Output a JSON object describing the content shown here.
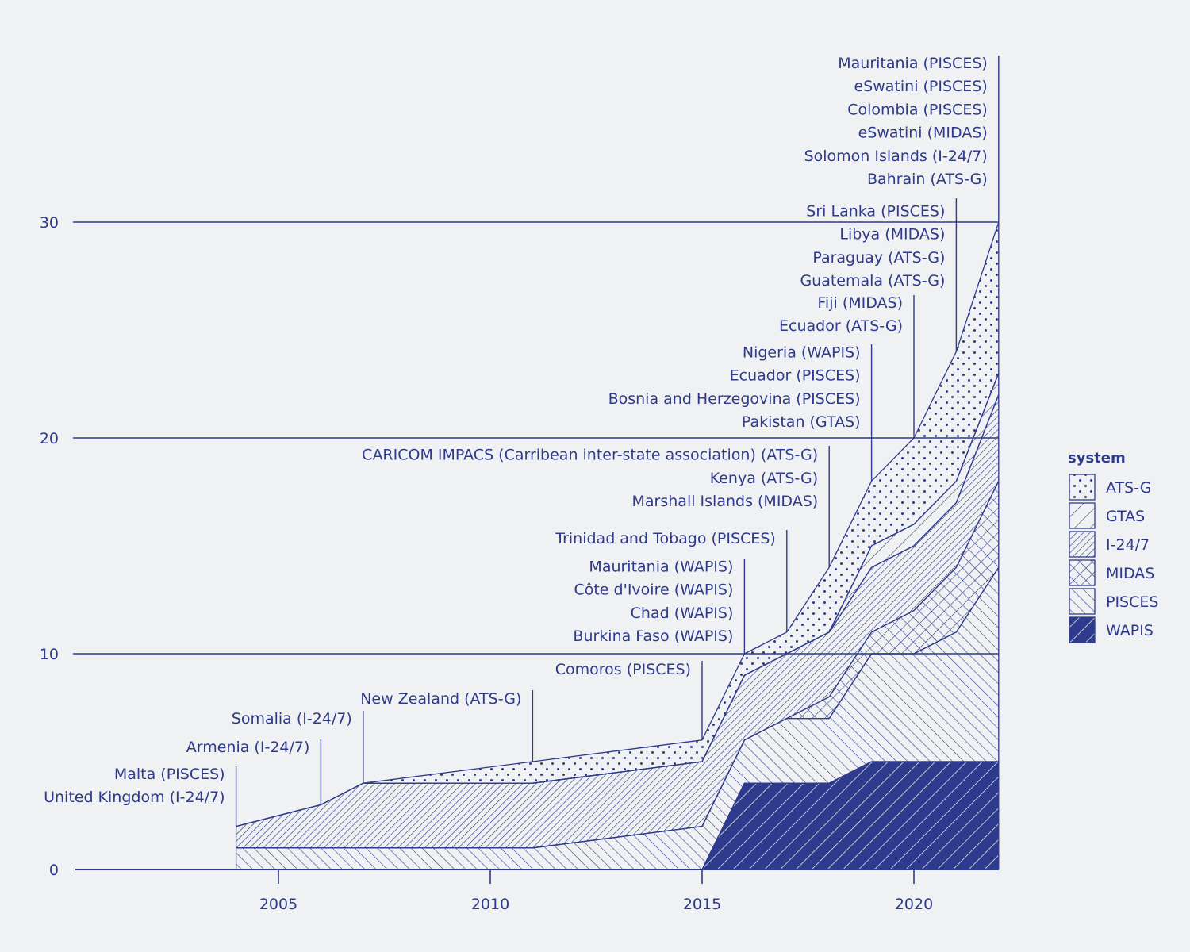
{
  "chart_data": {
    "type": "area",
    "stacked": true,
    "x": [
      2004,
      2006,
      2007,
      2011,
      2015,
      2016,
      2017,
      2018,
      2019,
      2020,
      2021,
      2022
    ],
    "series": [
      {
        "name": "WAPIS",
        "values": [
          0,
          0,
          0,
          0,
          0,
          4,
          4,
          4,
          5,
          5,
          5,
          5
        ]
      },
      {
        "name": "PISCES",
        "values": [
          1,
          1,
          1,
          1,
          2,
          2,
          3,
          3,
          5,
          5,
          6,
          9
        ]
      },
      {
        "name": "MIDAS",
        "values": [
          0,
          0,
          0,
          0,
          0,
          0,
          0,
          1,
          1,
          2,
          3,
          4
        ]
      },
      {
        "name": "I-24/7",
        "values": [
          1,
          2,
          3,
          3,
          3,
          3,
          3,
          3,
          3,
          3,
          3,
          4
        ]
      },
      {
        "name": "GTAS",
        "values": [
          0,
          0,
          0,
          0,
          0,
          0,
          0,
          0,
          1,
          1,
          1,
          1
        ]
      },
      {
        "name": "ATS-G",
        "values": [
          0,
          0,
          0,
          1,
          1,
          1,
          1,
          3,
          3,
          4,
          6,
          7
        ]
      }
    ],
    "xlim": [
      2000,
      2022
    ],
    "ylim": [
      0,
      30
    ],
    "xticks": [
      2005,
      2010,
      2015,
      2020
    ],
    "yticks": [
      0,
      10,
      20,
      30
    ],
    "grid_y_lines": [
      10,
      20,
      30
    ],
    "legend": {
      "title": "system",
      "placement": "right",
      "items": [
        "ATS-G",
        "GTAS",
        "I-24/7",
        "MIDAS",
        "PISCES",
        "WAPIS"
      ]
    },
    "annotations": [
      {
        "year": 2004,
        "labels": [
          "Malta (PISCES)",
          "United Kingdom (I-24/7)"
        ]
      },
      {
        "year": 2006,
        "labels": [
          "Armenia (I-24/7)"
        ]
      },
      {
        "year": 2007,
        "labels": [
          "Somalia (I-24/7)"
        ]
      },
      {
        "year": 2011,
        "labels": [
          "New Zealand (ATS-G)"
        ]
      },
      {
        "year": 2015,
        "labels": [
          "Comoros (PISCES)"
        ]
      },
      {
        "year": 2016,
        "labels": [
          "Mauritania (WAPIS)",
          "Côte d'Ivoire (WAPIS)",
          "Chad (WAPIS)",
          "Burkina Faso (WAPIS)"
        ]
      },
      {
        "year": 2017,
        "labels": [
          "Trinidad and Tobago (PISCES)"
        ]
      },
      {
        "year": 2018,
        "labels": [
          "CARICOM IMPACS (Carribean inter-state association) (ATS-G)",
          "Kenya (ATS-G)",
          "Marshall Islands (MIDAS)"
        ]
      },
      {
        "year": 2019,
        "labels": [
          "Nigeria (WAPIS)",
          "Ecuador (PISCES)",
          "Bosnia and Herzegovina (PISCES)",
          "Pakistan (GTAS)"
        ]
      },
      {
        "year": 2020,
        "labels": [
          "Fiji (MIDAS)",
          "Ecuador (ATS-G)"
        ]
      },
      {
        "year": 2021,
        "labels": [
          "Sri Lanka (PISCES)",
          "Libya (MIDAS)",
          "Paraguay (ATS-G)",
          "Guatemala (ATS-G)"
        ]
      },
      {
        "year": 2022,
        "labels": [
          "Mauritania (PISCES)",
          "eSwatini (PISCES)",
          "Colombia (PISCES)",
          "eSwatini (MIDAS)",
          "Solomon Islands (I-24/7)",
          "Bahrain (ATS-G)"
        ]
      }
    ]
  },
  "colors": {
    "ink": "#2e3a8c",
    "background": "#f0f1f2"
  }
}
